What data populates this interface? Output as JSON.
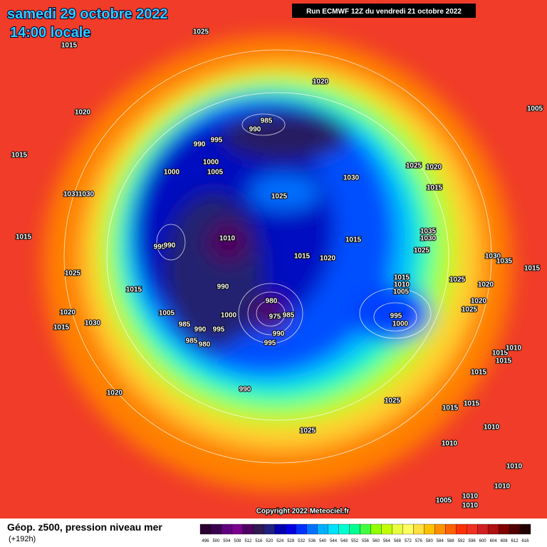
{
  "header": {
    "date": "samedi 29 octobre 2022",
    "time": "14:00 locale",
    "run": "Run ECMWF 12Z du vendredi 21 octobre 2022"
  },
  "copyright": "Copyright 2022 Meteociel.fr",
  "footer": {
    "title": "Géop. z500, pression niveau mer",
    "subtitle": "(+192h)"
  },
  "scale": {
    "values": [
      496,
      500,
      504,
      508,
      512,
      516,
      520,
      524,
      528,
      532,
      536,
      540,
      544,
      548,
      552,
      556,
      560,
      564,
      568,
      572,
      576,
      580,
      584,
      588,
      592,
      596,
      600,
      604,
      608,
      612,
      616
    ],
    "colors": [
      "#2b0030",
      "#3c0050",
      "#600080",
      "#7a0090",
      "#500060",
      "#301850",
      "#202080",
      "#0000b0",
      "#0000e0",
      "#0030ff",
      "#0070ff",
      "#00b0ff",
      "#00e0ff",
      "#00ffd0",
      "#00ff90",
      "#40ff40",
      "#90ff00",
      "#c0ff00",
      "#e8ff40",
      "#ffff60",
      "#ffe040",
      "#ffc000",
      "#ff9000",
      "#ff6000",
      "#ff3000",
      "#f03020",
      "#d02020",
      "#b01010",
      "#800000",
      "#500000",
      "#200000"
    ]
  },
  "isobar_labels": [
    1025,
    1015,
    1020,
    1015,
    1031,
    1030,
    1015,
    1025,
    1020,
    1015,
    1030,
    1015,
    1005,
    995,
    990,
    990,
    995,
    1000,
    1000,
    1005,
    985,
    990,
    1020,
    1030,
    1025,
    1010,
    1015,
    1020,
    1015,
    990,
    1000,
    980,
    975,
    985,
    990,
    995,
    985,
    990,
    995,
    985,
    980,
    990,
    1020,
    1025,
    1025,
    1015,
    1010,
    1005,
    995,
    1000,
    1025,
    1020,
    1015,
    1035,
    1030,
    1025,
    1030,
    1035,
    1015,
    1025,
    1020,
    1020,
    1025,
    1015,
    1010,
    1015,
    1015,
    1005,
    1015,
    1015,
    1010,
    1010,
    1010,
    1010,
    1010,
    1010,
    1005
  ]
}
